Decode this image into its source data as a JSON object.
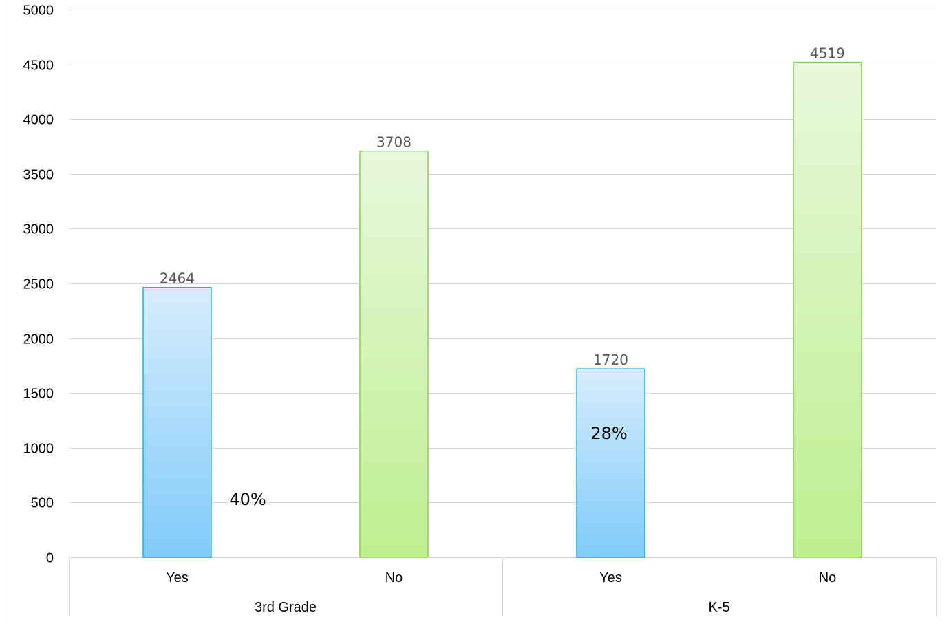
{
  "chart_data": {
    "type": "bar",
    "groups": [
      {
        "name": "3rd Grade",
        "categories": [
          "Yes",
          "No"
        ],
        "values": [
          2464,
          3708
        ]
      },
      {
        "name": "K-5",
        "categories": [
          "Yes",
          "No"
        ],
        "values": [
          1720,
          4519
        ]
      }
    ],
    "data_labels": [
      "2464",
      "3708",
      "1720",
      "4519"
    ],
    "annotations": [
      "40%",
      "28%"
    ],
    "ylim": [
      0,
      5000
    ],
    "yticks": [
      "0",
      "500",
      "1000",
      "1500",
      "2000",
      "2500",
      "3000",
      "3500",
      "4000",
      "4500",
      "5000"
    ],
    "grid": true,
    "legend": "none",
    "colors": {
      "yes_fill_top": "#d7ecfc",
      "yes_fill_bottom": "#80cbfa",
      "yes_stroke": "#1fb0e0",
      "no_fill_top": "#e8f8dc",
      "no_fill_bottom": "#bdef8f",
      "no_stroke": "#86d14f",
      "grid": "#d9d9d9"
    }
  }
}
